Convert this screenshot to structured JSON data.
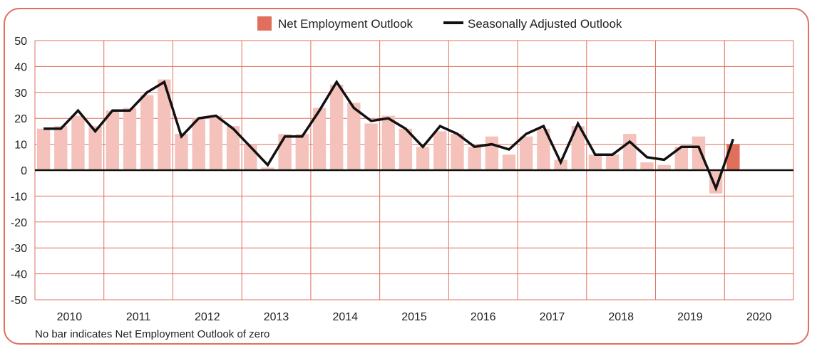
{
  "chart_data": {
    "type": "bar",
    "years": [
      "2010",
      "2011",
      "2012",
      "2013",
      "2014",
      "2015",
      "2016",
      "2017",
      "2018",
      "2019",
      "2020"
    ],
    "ylim": [
      -50,
      50
    ],
    "yticks": [
      50,
      40,
      30,
      20,
      10,
      0,
      -10,
      -20,
      -30,
      -40,
      -50
    ],
    "grid": true,
    "legend_position": "top-center",
    "series": [
      {
        "name": "Net Employment Outlook",
        "type": "bar",
        "color": "#f4c2bb",
        "highlight_color": "#e0705c",
        "values": [
          16,
          17,
          21,
          17,
          23,
          24,
          29,
          35,
          14,
          20,
          21,
          17,
          10,
          1,
          14,
          14,
          24,
          33,
          26,
          18,
          21,
          16,
          9,
          15,
          14,
          9,
          13,
          6,
          13,
          16,
          4,
          17,
          6,
          6,
          14,
          3,
          2,
          9,
          13,
          -9,
          10
        ]
      },
      {
        "name": "Seasonally Adjusted Outlook",
        "type": "line",
        "color": "#111111",
        "values": [
          16,
          16,
          23,
          15,
          23,
          23,
          30,
          34,
          13,
          20,
          21,
          16,
          9,
          2,
          13,
          13,
          23,
          34,
          24,
          19,
          20,
          16,
          9,
          17,
          14,
          9,
          10,
          8,
          14,
          17,
          3,
          18,
          6,
          6,
          11,
          5,
          4,
          9,
          9,
          -7,
          12
        ]
      }
    ],
    "footnote": "No bar indicates Net Employment Outlook of zero"
  }
}
